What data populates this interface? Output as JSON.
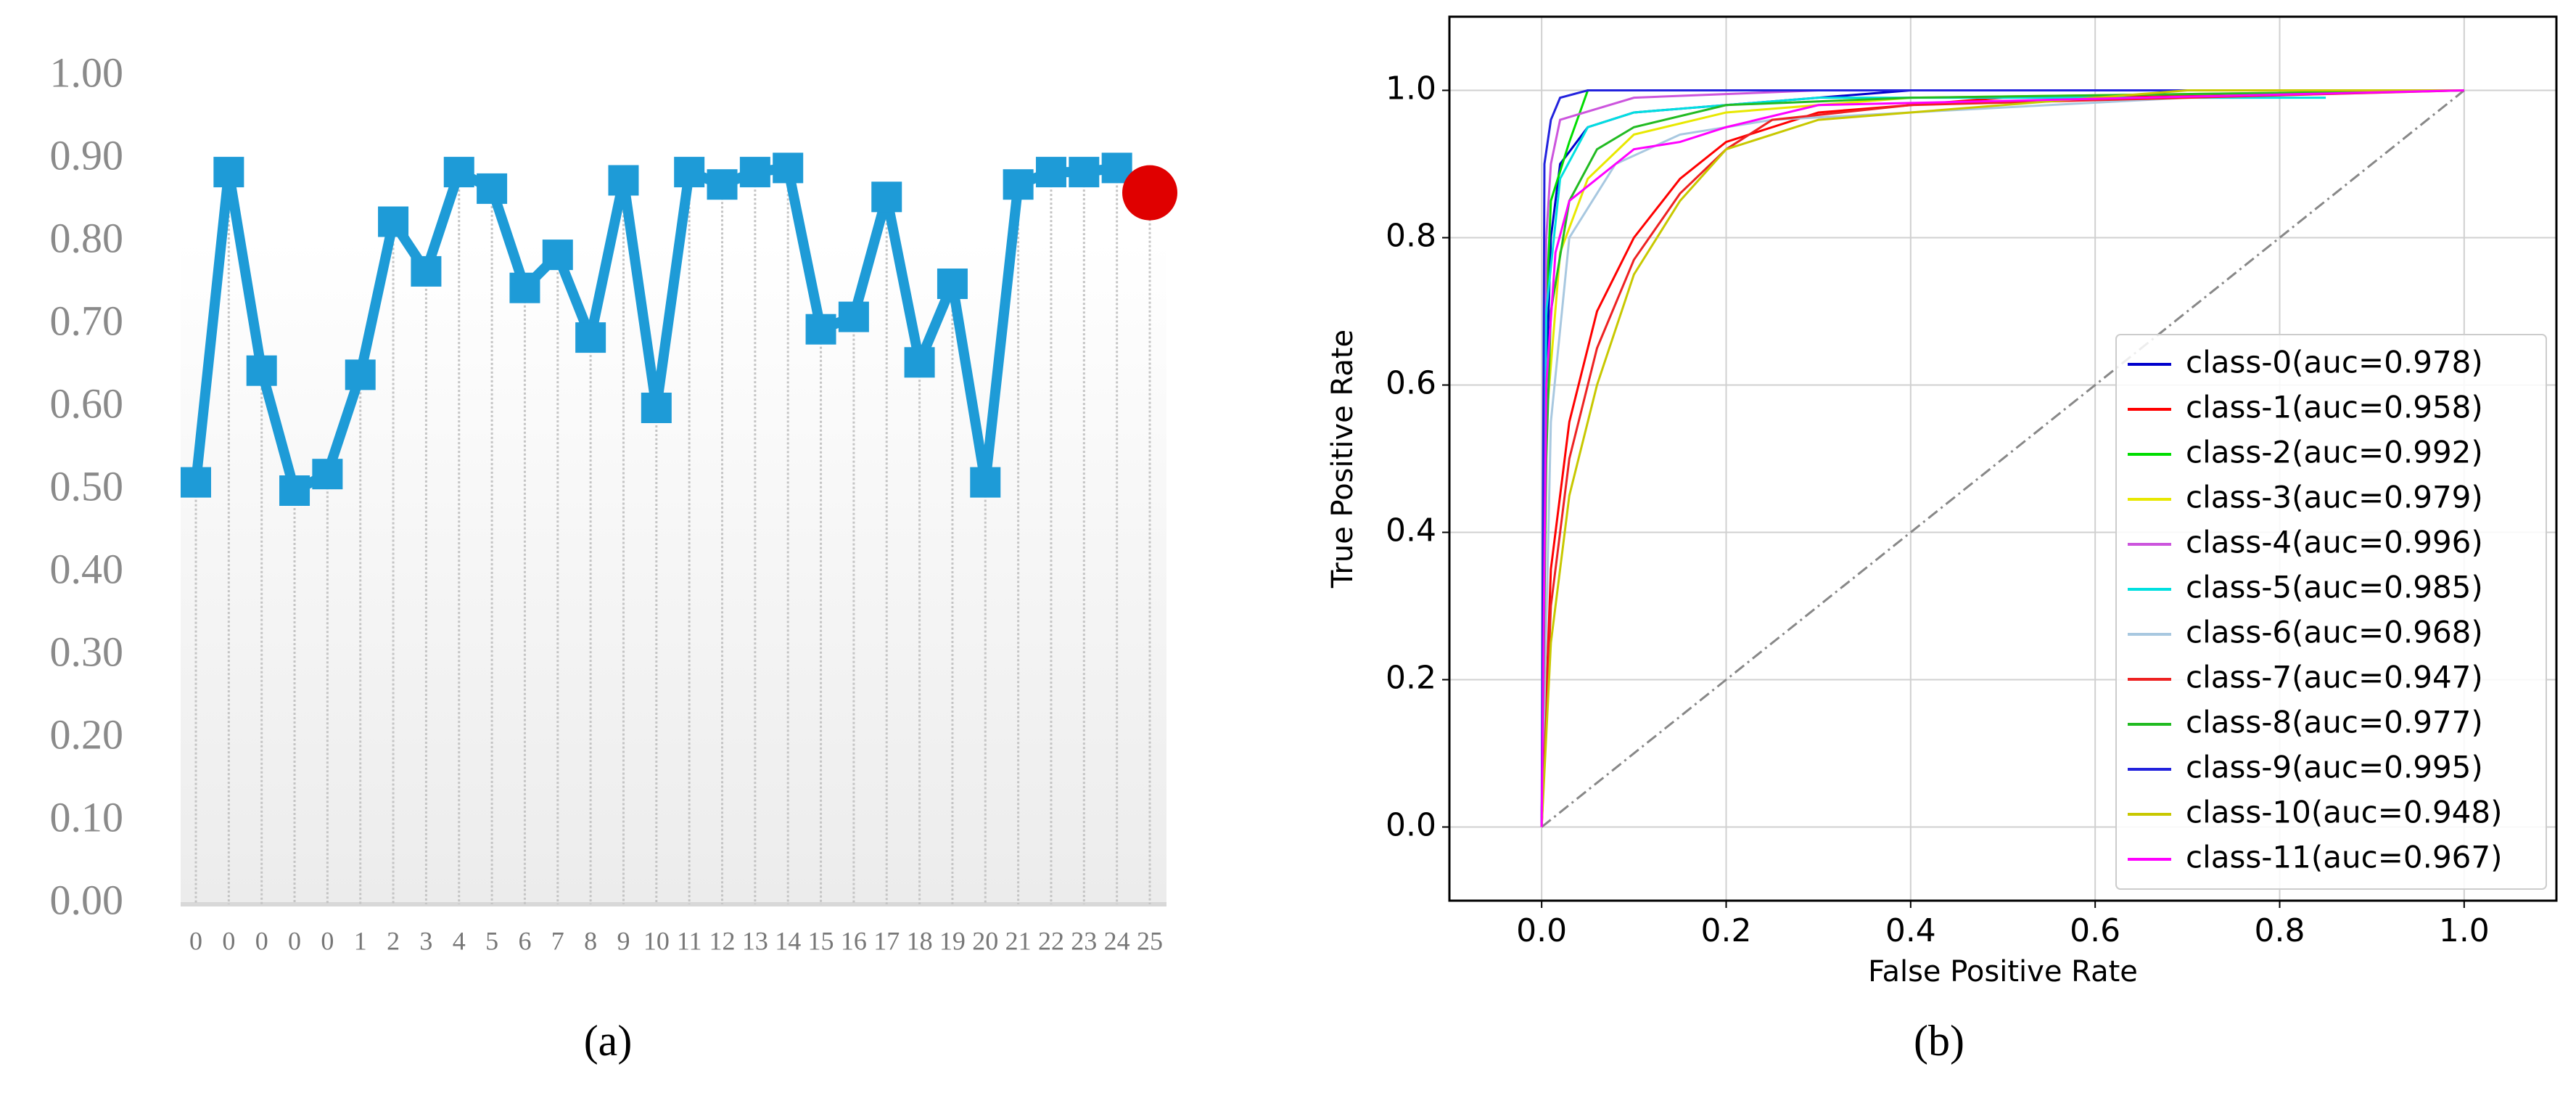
{
  "chart_data": [
    {
      "type": "line",
      "caption": "(a)",
      "categories": [
        "0",
        "0",
        "0",
        "0",
        "0",
        "1",
        "2",
        "3",
        "4",
        "5",
        "6",
        "7",
        "8",
        "9",
        "10",
        "11",
        "12",
        "13",
        "14",
        "15",
        "16",
        "17",
        "18",
        "19",
        "20",
        "21",
        "22",
        "23",
        "24",
        "25"
      ],
      "series": [
        {
          "color": "#1e9bd7",
          "marker": "square",
          "values": [
            0.51,
            0.885,
            0.645,
            0.5,
            0.52,
            0.64,
            0.825,
            0.765,
            0.885,
            0.865,
            0.745,
            0.785,
            0.685,
            0.875,
            0.6,
            0.885,
            0.87,
            0.885,
            0.89,
            0.695,
            0.71,
            0.855,
            0.655,
            0.75,
            0.51,
            0.87,
            0.885,
            0.885,
            0.89,
            null
          ]
        },
        {
          "color": "#e00000",
          "marker": "circle",
          "values": [
            null,
            null,
            null,
            null,
            null,
            null,
            null,
            null,
            null,
            null,
            null,
            null,
            null,
            null,
            null,
            null,
            null,
            null,
            null,
            null,
            null,
            null,
            null,
            null,
            null,
            null,
            null,
            null,
            null,
            0.86
          ]
        }
      ],
      "ylim": [
        0,
        1
      ],
      "yticks": [
        {
          "value": 0,
          "label": "0.00"
        },
        {
          "value": 0.1,
          "label": "0.10"
        },
        {
          "value": 0.2,
          "label": "0.20"
        },
        {
          "value": 0.3,
          "label": "0.30"
        },
        {
          "value": 0.4,
          "label": "0.40"
        },
        {
          "value": 0.5,
          "label": "0.50"
        },
        {
          "value": 0.6,
          "label": "0.60"
        },
        {
          "value": 0.7,
          "label": "0.70"
        },
        {
          "value": 0.8,
          "label": "0.80"
        },
        {
          "value": 0.9,
          "label": "0.90"
        },
        {
          "value": 1,
          "label": "1.00"
        }
      ],
      "drop_lines": true,
      "grid": false
    },
    {
      "type": "line",
      "caption": "(b)",
      "xlabel": "False Positive Rate",
      "ylabel": "True Positive Rate",
      "xlim": [
        -0.1,
        1.1
      ],
      "ylim": [
        -0.1,
        1.1
      ],
      "xticks": [
        {
          "value": 0,
          "label": "0.0"
        },
        {
          "value": 0.2,
          "label": "0.2"
        },
        {
          "value": 0.4,
          "label": "0.4"
        },
        {
          "value": 0.6,
          "label": "0.6"
        },
        {
          "value": 0.8,
          "label": "0.8"
        },
        {
          "value": 1,
          "label": "1.0"
        }
      ],
      "yticks": [
        {
          "value": 0,
          "label": "0.0"
        },
        {
          "value": 0.2,
          "label": "0.2"
        },
        {
          "value": 0.4,
          "label": "0.4"
        },
        {
          "value": 0.6,
          "label": "0.6"
        },
        {
          "value": 0.8,
          "label": "0.8"
        },
        {
          "value": 1,
          "label": "1.0"
        }
      ],
      "grid": true,
      "legend": "lower right",
      "reference_line": {
        "x": [
          0,
          1
        ],
        "y": [
          0,
          1
        ],
        "color": "#888888"
      },
      "series": [
        {
          "name": "class-0(auc=0.978)",
          "color": "#0000cc",
          "x": [
            0,
            0.005,
            0.01,
            0.02,
            0.05,
            0.1,
            0.2,
            0.4,
            1
          ],
          "y": [
            0,
            0.6,
            0.8,
            0.9,
            0.95,
            0.97,
            0.98,
            1,
            1
          ]
        },
        {
          "name": "class-1(auc=0.958)",
          "color": "#ff0000",
          "x": [
            0,
            0.01,
            0.03,
            0.06,
            0.1,
            0.15,
            0.2,
            0.3,
            0.5,
            1
          ],
          "y": [
            0,
            0.35,
            0.55,
            0.7,
            0.8,
            0.88,
            0.93,
            0.97,
            0.99,
            1
          ]
        },
        {
          "name": "class-2(auc=0.992)",
          "color": "#00dd00",
          "x": [
            0,
            0.005,
            0.01,
            0.03,
            0.05,
            0.1,
            0.3,
            1
          ],
          "y": [
            0,
            0.7,
            0.85,
            0.93,
            1,
            1,
            1,
            1
          ]
        },
        {
          "name": "class-3(auc=0.979)",
          "color": "#e8e800",
          "x": [
            0,
            0.005,
            0.02,
            0.05,
            0.1,
            0.2,
            0.4,
            1
          ],
          "y": [
            0,
            0.55,
            0.78,
            0.88,
            0.94,
            0.97,
            0.99,
            1
          ]
        },
        {
          "name": "class-4(auc=0.996)",
          "color": "#cc55dd",
          "x": [
            0,
            0.005,
            0.01,
            0.02,
            0.1,
            0.3,
            1
          ],
          "y": [
            0,
            0.8,
            0.9,
            0.96,
            0.99,
            1,
            1
          ]
        },
        {
          "name": "class-5(auc=0.985)",
          "color": "#00e0e0",
          "x": [
            0,
            0.005,
            0.02,
            0.05,
            0.1,
            0.3,
            0.85
          ],
          "y": [
            0,
            0.7,
            0.88,
            0.95,
            0.97,
            0.99,
            0.99
          ]
        },
        {
          "name": "class-6(auc=0.968)",
          "color": "#a8c8e0",
          "x": [
            0,
            0.01,
            0.03,
            0.08,
            0.15,
            0.25,
            0.7,
            1
          ],
          "y": [
            0,
            0.55,
            0.8,
            0.9,
            0.94,
            0.96,
            0.99,
            1
          ]
        },
        {
          "name": "class-7(auc=0.947)",
          "color": "#ee2222",
          "x": [
            0,
            0.01,
            0.03,
            0.06,
            0.1,
            0.15,
            0.2,
            0.25,
            0.4,
            1
          ],
          "y": [
            0,
            0.3,
            0.5,
            0.65,
            0.77,
            0.86,
            0.92,
            0.96,
            0.98,
            1
          ]
        },
        {
          "name": "class-8(auc=0.977)",
          "color": "#22bb22",
          "x": [
            0,
            0.005,
            0.01,
            0.03,
            0.06,
            0.1,
            0.2,
            0.4,
            1
          ],
          "y": [
            0,
            0.5,
            0.7,
            0.85,
            0.92,
            0.95,
            0.98,
            0.99,
            1
          ]
        },
        {
          "name": "class-9(auc=0.995)",
          "color": "#2222dd",
          "x": [
            0,
            0.003,
            0.01,
            0.02,
            0.05,
            0.2,
            1
          ],
          "y": [
            0,
            0.9,
            0.96,
            0.99,
            1,
            1,
            1
          ]
        },
        {
          "name": "class-10(auc=0.948)",
          "color": "#c8c800",
          "x": [
            0,
            0.01,
            0.03,
            0.06,
            0.1,
            0.15,
            0.2,
            0.3,
            0.7,
            1
          ],
          "y": [
            0,
            0.25,
            0.45,
            0.6,
            0.75,
            0.85,
            0.92,
            0.96,
            1,
            1
          ]
        },
        {
          "name": "class-11(auc=0.967)",
          "color": "#ff00ff",
          "x": [
            0,
            0.005,
            0.015,
            0.03,
            0.08,
            0.1,
            0.15,
            0.2,
            0.3,
            1
          ],
          "y": [
            0,
            0.6,
            0.78,
            0.85,
            0.9,
            0.92,
            0.93,
            0.95,
            0.98,
            1
          ]
        }
      ]
    }
  ]
}
